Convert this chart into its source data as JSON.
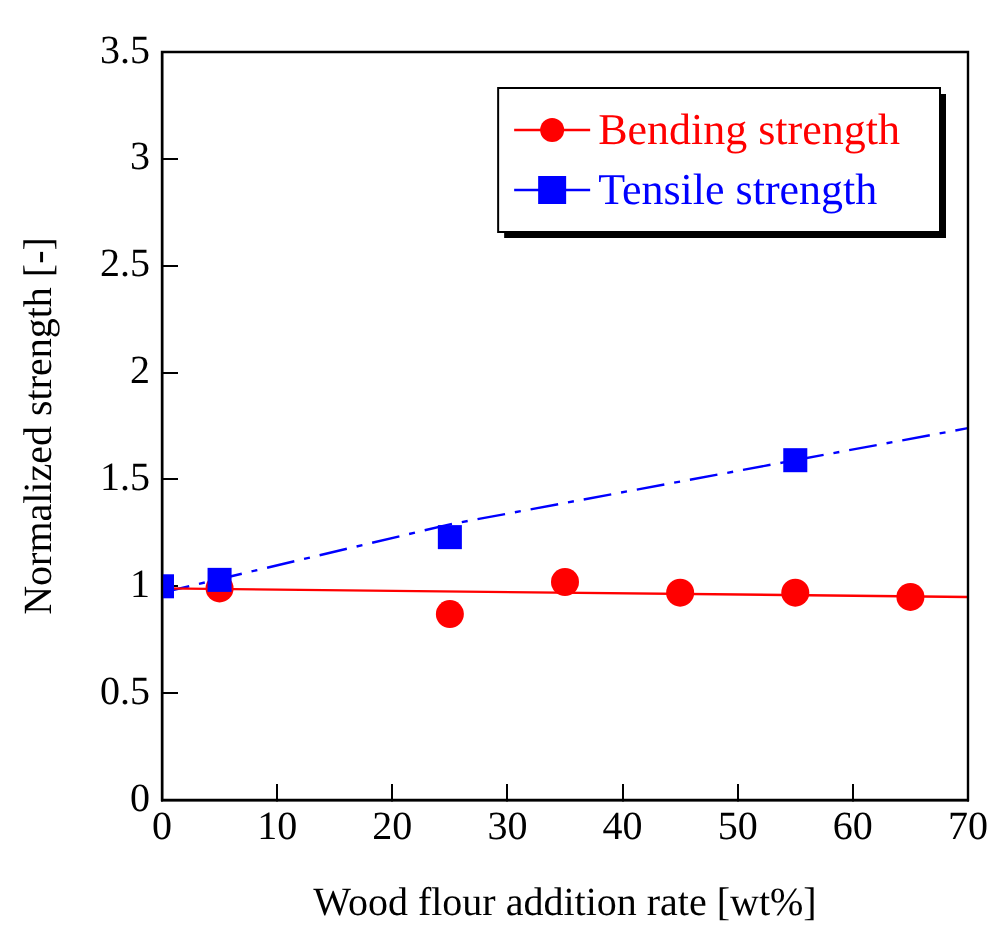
{
  "chart_data": {
    "type": "scatter",
    "xlabel": "Wood flour addition rate [wt%]",
    "ylabel": "Normalized strength [-]",
    "xlim": [
      0,
      70
    ],
    "xticks": [
      0,
      10,
      20,
      30,
      40,
      50,
      60,
      70
    ],
    "ylim": [
      0,
      3.5
    ],
    "yticks": [
      0,
      0.5,
      1,
      1.5,
      2,
      2.5,
      3,
      3.5
    ],
    "grid": false,
    "legend": "top right",
    "series": [
      {
        "type": "line",
        "color": "#ff0000",
        "x": [
          0,
          70
        ],
        "values": [
          0.99,
          0.95
        ],
        "marker": "none",
        "line_style": "solid"
      },
      {
        "type": "line",
        "color": "#0000ff",
        "x": [
          0,
          25,
          55,
          70
        ],
        "values": [
          0.97,
          1.29,
          1.59,
          1.74
        ],
        "marker": "none",
        "line_style": "dashed"
      },
      {
        "name": "Bending strength",
        "color": "#ff0000",
        "marker": "circle",
        "x": [
          5,
          25,
          35,
          45,
          55,
          65
        ],
        "values": [
          0.99,
          0.87,
          1.02,
          0.97,
          0.97,
          0.95
        ]
      },
      {
        "name": "Tensile strength",
        "color": "#0000ff",
        "marker": "square",
        "x": [
          0,
          5,
          25,
          55
        ],
        "values": [
          1.0,
          1.03,
          1.23,
          1.59
        ]
      }
    ]
  }
}
